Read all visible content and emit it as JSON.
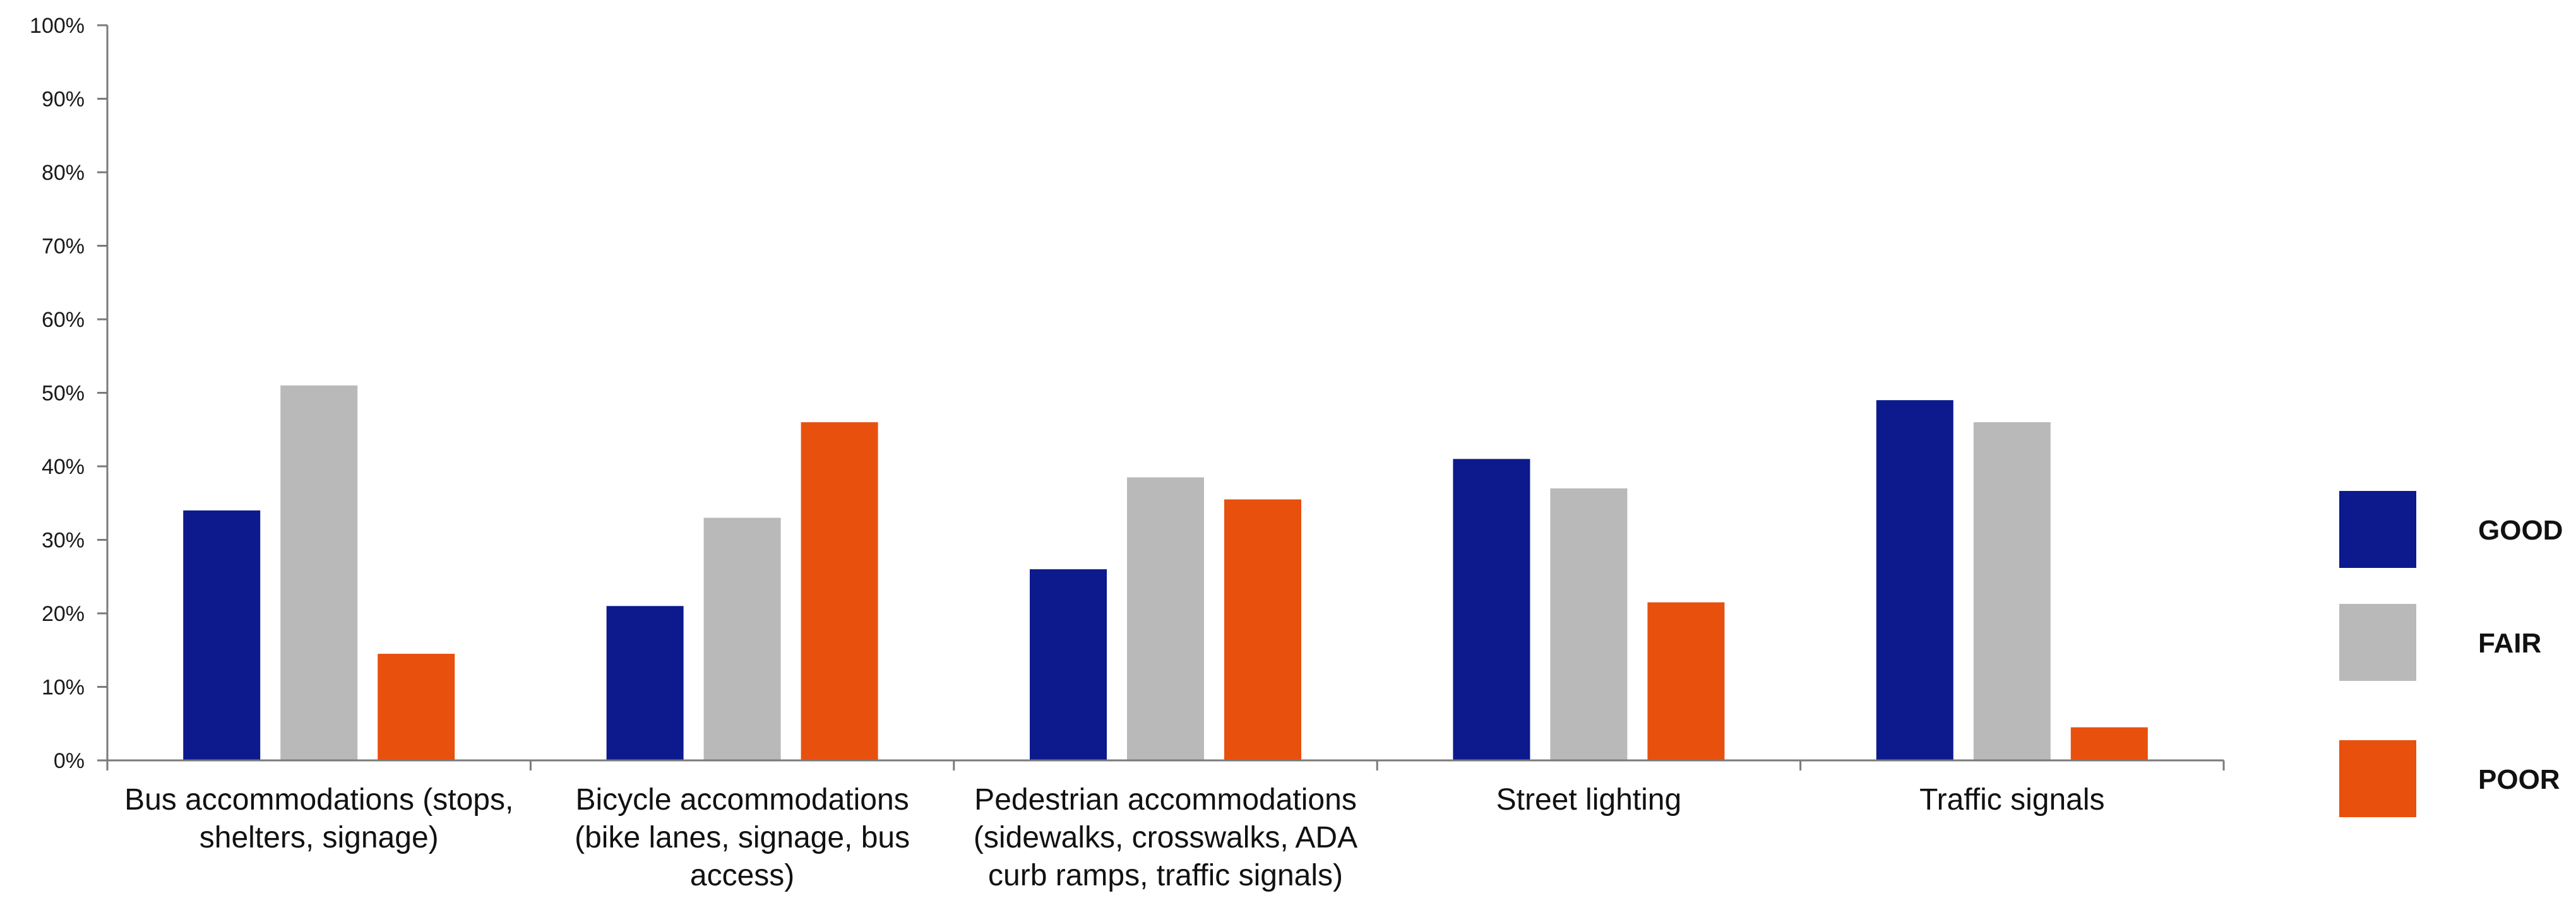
{
  "chart_data": {
    "type": "bar",
    "title": "",
    "xlabel": "",
    "ylabel": "",
    "ylim": [
      0,
      100
    ],
    "yticks": [
      "0%",
      "10%",
      "20%",
      "30%",
      "40%",
      "50%",
      "60%",
      "70%",
      "80%",
      "90%",
      "100%"
    ],
    "categories": [
      [
        "Bus accommodations (stops,",
        "shelters, signage)"
      ],
      [
        "Bicycle accommodations",
        "(bike lanes, signage, bus",
        "access)"
      ],
      [
        "Pedestrian accommodations",
        "(sidewalks, crosswalks, ADA",
        "curb ramps, traffic signals)"
      ],
      [
        "Street lighting"
      ],
      [
        "Traffic signals"
      ]
    ],
    "series": [
      {
        "name": "GOOD",
        "color": "#0c1a8e",
        "values": [
          34,
          21,
          26,
          41,
          49
        ]
      },
      {
        "name": "FAIR",
        "color": "#b9b9b9",
        "values": [
          51,
          33,
          38.5,
          37,
          46
        ]
      },
      {
        "name": "POOR",
        "color": "#e8500e",
        "values": [
          14.5,
          46,
          35.5,
          21.5,
          4.5
        ]
      }
    ],
    "grid": false,
    "legend_position": "right"
  }
}
